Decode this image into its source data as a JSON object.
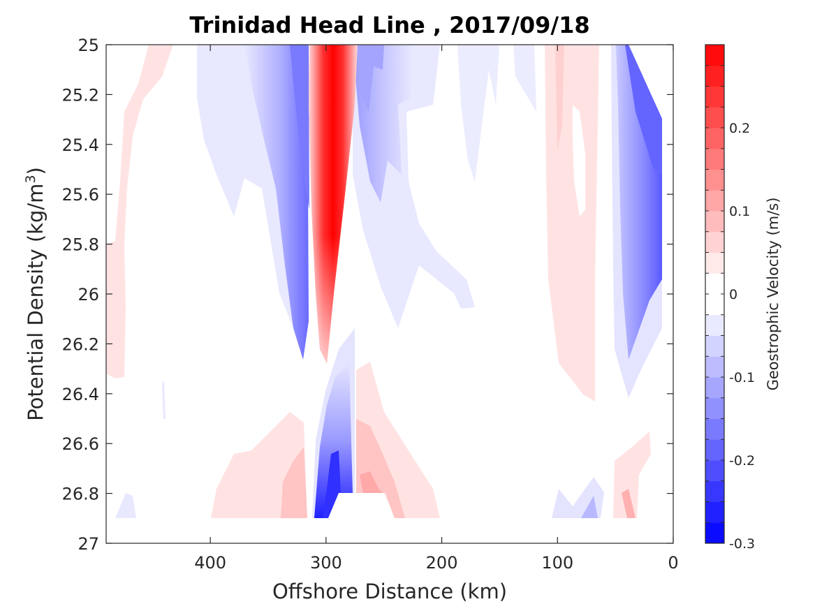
{
  "chart_data": {
    "type": "heatmap",
    "subtype": "filled-contour",
    "title": "Trinidad Head Line , 2017/09/18",
    "xlabel": "Offshore Distance (km)",
    "ylabel": "Potential Density (kg/m",
    "ylabel_sup": "3",
    "ylabel_close": ")",
    "x_reversed": true,
    "xlim": [
      490,
      0
    ],
    "ylim": [
      25,
      27
    ],
    "y_reversed": true,
    "x_ticks": [
      400,
      300,
      200,
      100,
      0
    ],
    "y_ticks": [
      25,
      25.2,
      25.4,
      25.6,
      25.8,
      26,
      26.2,
      26.4,
      26.6,
      26.8,
      27
    ],
    "y_tick_labels": [
      "25",
      "25.2",
      "25.4",
      "25.6",
      "25.8",
      "26",
      "26.2",
      "26.4",
      "26.6",
      "26.8",
      "27"
    ],
    "colorbar": {
      "label": "Geostrophic Velocity (m/s)",
      "min": -0.3,
      "max": 0.3,
      "step": 0.025,
      "ticks": [
        -0.3,
        -0.2,
        -0.1,
        0,
        0.1,
        0.2
      ],
      "tick_labels": [
        "-0.3",
        "-0.2",
        "-0.1",
        "0",
        "0.1",
        "0.2"
      ],
      "colormap": "blue-white-red",
      "neg_color": "#0000ff",
      "pos_color": "#ff0000"
    },
    "grid": false,
    "features": [
      {
        "x": [
          490,
          455
        ],
        "y": [
          25.0,
          26.35
        ],
        "value": 0.02
      },
      {
        "x": [
          400,
          325
        ],
        "y": [
          25.0,
          25.7
        ],
        "value": -0.03
      },
      {
        "x": [
          335,
          318
        ],
        "y": [
          25.0,
          26.25
        ],
        "value": -0.15
      },
      {
        "x": [
          315,
          272
        ],
        "y": [
          25.0,
          26.3
        ],
        "value": 0.3
      },
      {
        "x": [
          275,
          230
        ],
        "y": [
          25.0,
          26.1
        ],
        "value": -0.1
      },
      {
        "x": [
          305,
          278
        ],
        "y": [
          26.25,
          26.9
        ],
        "value": -0.25
      },
      {
        "x": [
          270,
          200
        ],
        "y": [
          26.3,
          26.9
        ],
        "value": 0.08
      },
      {
        "x": [
          400,
          318
        ],
        "y": [
          26.55,
          26.9
        ],
        "value": 0.05
      },
      {
        "x": [
          110,
          60
        ],
        "y": [
          25.0,
          26.4
        ],
        "value": 0.03
      },
      {
        "x": [
          50,
          0
        ],
        "y": [
          25.0,
          26.6
        ],
        "value": -0.18
      },
      {
        "x": [
          50,
          25
        ],
        "y": [
          26.6,
          26.9
        ],
        "value": 0.06
      }
    ]
  }
}
